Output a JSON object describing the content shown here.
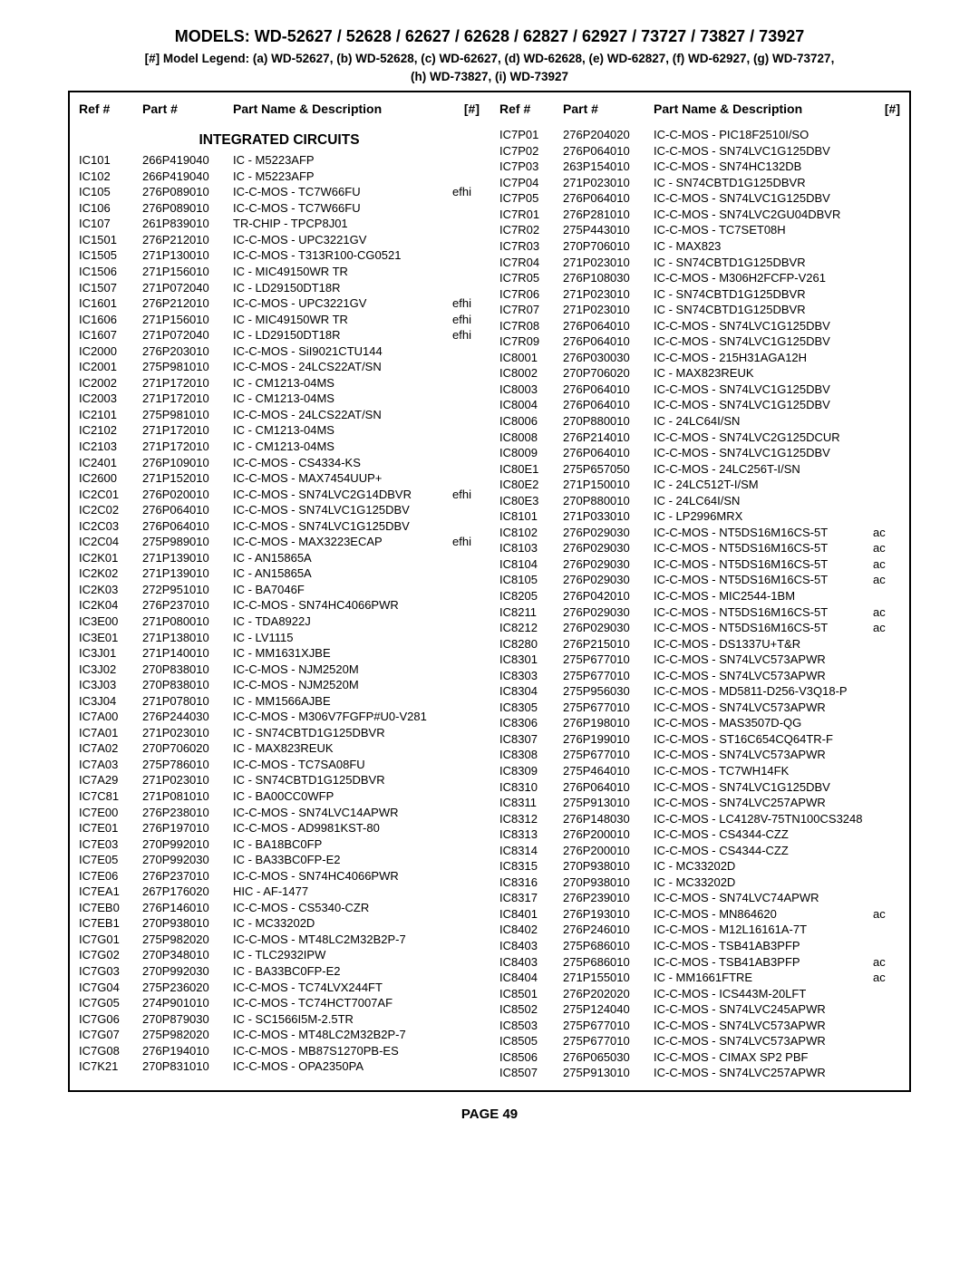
{
  "header": {
    "models_title": "MODELS: WD-52627 / 52628 / 62627 / 62628 / 62827 / 62927 / 73727 / 73827 / 73927",
    "legend_line1": "[#] Model Legend:  (a) WD-52627, (b) WD-52628, (c) WD-62627, (d) WD-62628, (e) WD-62827, (f) WD-62927, (g) WD-73727,",
    "legend_line2": "(h) WD-73827, (i) WD-73927"
  },
  "column_headers": {
    "ref": "Ref #",
    "part": "Part #",
    "desc": "Part Name & Description",
    "hash": "[#]"
  },
  "section_title": "INTEGRATED CIRCUITS",
  "page_label": "PAGE 49",
  "left_rows": [
    {
      "ref": "IC101",
      "part": "266P419040",
      "desc": "IC - M5223AFP",
      "tag": ""
    },
    {
      "ref": "IC102",
      "part": "266P419040",
      "desc": "IC - M5223AFP",
      "tag": ""
    },
    {
      "ref": "IC105",
      "part": "276P089010",
      "desc": "IC-C-MOS -  TC7W66FU",
      "tag": "efhi"
    },
    {
      "ref": "IC106",
      "part": "276P089010",
      "desc": "IC-C-MOS - TC7W66FU",
      "tag": ""
    },
    {
      "ref": "IC107",
      "part": "261P839010",
      "desc": "TR-CHIP -  TPCP8J01",
      "tag": ""
    },
    {
      "ref": "IC1501",
      "part": "276P212010",
      "desc": "IC-C-MOS - UPC3221GV",
      "tag": ""
    },
    {
      "ref": "IC1505",
      "part": "271P130010",
      "desc": "IC-C-MOS - T313R100-CG0521",
      "tag": ""
    },
    {
      "ref": "IC1506",
      "part": "271P156010",
      "desc": "IC -  MIC49150WR TR",
      "tag": ""
    },
    {
      "ref": "IC1507",
      "part": "271P072040",
      "desc": "IC - LD29150DT18R",
      "tag": ""
    },
    {
      "ref": "IC1601",
      "part": "276P212010",
      "desc": "IC-C-MOS -  UPC3221GV",
      "tag": "efhi"
    },
    {
      "ref": "IC1606",
      "part": "271P156010",
      "desc": "IC -  MIC49150WR TR",
      "tag": "efhi"
    },
    {
      "ref": "IC1607",
      "part": "271P072040",
      "desc": "IC - LD29150DT18R",
      "tag": "efhi"
    },
    {
      "ref": "IC2000",
      "part": "276P203010",
      "desc": "IC-C-MOS -  SiI9021CTU144",
      "tag": ""
    },
    {
      "ref": "IC2001",
      "part": "275P981010",
      "desc": "IC-C-MOS - 24LCS22AT/SN",
      "tag": ""
    },
    {
      "ref": "IC2002",
      "part": "271P172010",
      "desc": "IC -  CM1213-04MS",
      "tag": ""
    },
    {
      "ref": "IC2003",
      "part": "271P172010",
      "desc": "IC -  CM1213-04MS",
      "tag": ""
    },
    {
      "ref": "IC2101",
      "part": "275P981010",
      "desc": "IC-C-MOS - 24LCS22AT/SN",
      "tag": ""
    },
    {
      "ref": "IC2102",
      "part": "271P172010",
      "desc": "IC -  CM1213-04MS",
      "tag": ""
    },
    {
      "ref": "IC2103",
      "part": "271P172010",
      "desc": "IC -  CM1213-04MS",
      "tag": ""
    },
    {
      "ref": "IC2401",
      "part": "276P109010",
      "desc": "IC-C-MOS - CS4334-KS",
      "tag": ""
    },
    {
      "ref": "IC2600",
      "part": "271P152010",
      "desc": "IC-C-MOS - MAX7454UUP+",
      "tag": ""
    },
    {
      "ref": "IC2C01",
      "part": "276P020010",
      "desc": "IC-C-MOS - SN74LVC2G14DBVR",
      "tag": "efhi"
    },
    {
      "ref": "IC2C02",
      "part": "276P064010",
      "desc": "IC-C-MOS - SN74LVC1G125DBV",
      "tag": ""
    },
    {
      "ref": "IC2C03",
      "part": "276P064010",
      "desc": "IC-C-MOS - SN74LVC1G125DBV",
      "tag": ""
    },
    {
      "ref": "IC2C04",
      "part": "275P989010",
      "desc": "IC-C-MOS - MAX3223ECAP",
      "tag": "efhi"
    },
    {
      "ref": "IC2K01",
      "part": "271P139010",
      "desc": "IC -  AN15865A",
      "tag": ""
    },
    {
      "ref": "IC2K02",
      "part": "271P139010",
      "desc": "IC -  AN15865A",
      "tag": ""
    },
    {
      "ref": "IC2K03",
      "part": "272P951010",
      "desc": "IC - BA7046F",
      "tag": ""
    },
    {
      "ref": "IC2K04",
      "part": "276P237010",
      "desc": "IC-C-MOS -  SN74HC4066PWR",
      "tag": ""
    },
    {
      "ref": "IC3E00",
      "part": "271P080010",
      "desc": "IC - TDA8922J",
      "tag": ""
    },
    {
      "ref": "IC3E01",
      "part": "271P138010",
      "desc": "IC - LV1115",
      "tag": ""
    },
    {
      "ref": "IC3J01",
      "part": "271P140010",
      "desc": "IC -  MM1631XJBE",
      "tag": ""
    },
    {
      "ref": "IC3J02",
      "part": "270P838010",
      "desc": "IC-C-MOS - NJM2520M",
      "tag": ""
    },
    {
      "ref": "IC3J03",
      "part": "270P838010",
      "desc": "IC-C-MOS - NJM2520M",
      "tag": ""
    },
    {
      "ref": "IC3J04",
      "part": "271P078010",
      "desc": "IC - MM1566AJBE",
      "tag": ""
    },
    {
      "ref": "IC7A00",
      "part": "276P244030",
      "desc": "IC-C-MOS - M306V7FGFP#U0-V281",
      "tag": ""
    },
    {
      "ref": "IC7A01",
      "part": "271P023010",
      "desc": "IC - SN74CBTD1G125DBVR",
      "tag": ""
    },
    {
      "ref": "IC7A02",
      "part": "270P706020",
      "desc": "IC - MAX823REUK",
      "tag": ""
    },
    {
      "ref": "IC7A03",
      "part": "275P786010",
      "desc": "IC-C-MOS - TC7SA08FU",
      "tag": ""
    },
    {
      "ref": "IC7A29",
      "part": "271P023010",
      "desc": "IC - SN74CBTD1G125DBVR",
      "tag": ""
    },
    {
      "ref": "IC7C81",
      "part": "271P081010",
      "desc": "IC - BA00CC0WFP",
      "tag": ""
    },
    {
      "ref": "IC7E00",
      "part": "276P238010",
      "desc": "IC-C-MOS -  SN74LVC14APWR",
      "tag": ""
    },
    {
      "ref": "IC7E01",
      "part": "276P197010",
      "desc": "IC-C-MOS -  AD9981KST-80",
      "tag": ""
    },
    {
      "ref": "IC7E03",
      "part": "270P992010",
      "desc": "IC - BA18BC0FP",
      "tag": ""
    },
    {
      "ref": "IC7E05",
      "part": "270P992030",
      "desc": "IC -  BA33BC0FP-E2",
      "tag": ""
    },
    {
      "ref": "IC7E06",
      "part": "276P237010",
      "desc": "IC-C-MOS - SN74HC4066PWR",
      "tag": ""
    },
    {
      "ref": "IC7EA1",
      "part": "267P176020",
      "desc": "HIC -  AF-1477",
      "tag": ""
    },
    {
      "ref": "IC7EB0",
      "part": "276P146010",
      "desc": "IC-C-MOS - CS5340-CZR",
      "tag": ""
    },
    {
      "ref": "IC7EB1",
      "part": "270P938010",
      "desc": "IC -  MC33202D",
      "tag": ""
    },
    {
      "ref": "IC7G01",
      "part": "275P982020",
      "desc": "IC-C-MOS - MT48LC2M32B2P-7",
      "tag": ""
    },
    {
      "ref": "IC7G02",
      "part": "270P348010",
      "desc": "IC - TLC2932IPW",
      "tag": ""
    },
    {
      "ref": "IC7G03",
      "part": "270P992030",
      "desc": "IC -  BA33BC0FP-E2",
      "tag": ""
    },
    {
      "ref": "IC7G04",
      "part": "275P236020",
      "desc": "IC-C-MOS - TC74LVX244FT",
      "tag": ""
    },
    {
      "ref": "IC7G05",
      "part": "274P901010",
      "desc": "IC-C-MOS - TC74HCT7007AF",
      "tag": ""
    },
    {
      "ref": "IC7G06",
      "part": "270P879030",
      "desc": "IC - SC1566I5M-2.5TR",
      "tag": ""
    },
    {
      "ref": "IC7G07",
      "part": "275P982020",
      "desc": "IC-C-MOS - MT48LC2M32B2P-7",
      "tag": ""
    },
    {
      "ref": "IC7G08",
      "part": "276P194010",
      "desc": "IC-C-MOS - MB87S1270PB-ES",
      "tag": ""
    },
    {
      "ref": "IC7K21",
      "part": "270P831010",
      "desc": "IC-C-MOS - OPA2350PA",
      "tag": ""
    }
  ],
  "right_rows": [
    {
      "ref": "IC7P01",
      "part": "276P204020",
      "desc": "IC-C-MOS -  PIC18F2510I/SO",
      "tag": ""
    },
    {
      "ref": "IC7P02",
      "part": "276P064010",
      "desc": "IC-C-MOS - SN74LVC1G125DBV",
      "tag": ""
    },
    {
      "ref": "IC7P03",
      "part": "263P154010",
      "desc": "IC-C-MOS -  SN74HC132DB",
      "tag": ""
    },
    {
      "ref": "IC7P04",
      "part": "271P023010",
      "desc": "IC - SN74CBTD1G125DBVR",
      "tag": ""
    },
    {
      "ref": "IC7P05",
      "part": "276P064010",
      "desc": "IC-C-MOS - SN74LVC1G125DBV",
      "tag": ""
    },
    {
      "ref": "IC7R01",
      "part": "276P281010",
      "desc": "IC-C-MOS - SN74LVC2GU04DBVR",
      "tag": ""
    },
    {
      "ref": "IC7R02",
      "part": "275P443010",
      "desc": "IC-C-MOS - TC7SET08H",
      "tag": ""
    },
    {
      "ref": "IC7R03",
      "part": "270P706010",
      "desc": "IC - MAX823",
      "tag": ""
    },
    {
      "ref": "IC7R04",
      "part": "271P023010",
      "desc": "IC - SN74CBTD1G125DBVR",
      "tag": ""
    },
    {
      "ref": "IC7R05",
      "part": "276P108030",
      "desc": "IC-C-MOS - M306H2FCFP-V261",
      "tag": ""
    },
    {
      "ref": "IC7R06",
      "part": "271P023010",
      "desc": "IC - SN74CBTD1G125DBVR",
      "tag": ""
    },
    {
      "ref": "IC7R07",
      "part": "271P023010",
      "desc": "IC - SN74CBTD1G125DBVR",
      "tag": ""
    },
    {
      "ref": "IC7R08",
      "part": "276P064010",
      "desc": "IC-C-MOS - SN74LVC1G125DBV",
      "tag": ""
    },
    {
      "ref": "IC7R09",
      "part": "276P064010",
      "desc": "IC-C-MOS - SN74LVC1G125DBV",
      "tag": ""
    },
    {
      "ref": "IC8001",
      "part": "276P030030",
      "desc": "IC-C-MOS - 215H31AGA12H",
      "tag": ""
    },
    {
      "ref": "IC8002",
      "part": "270P706020",
      "desc": "IC - MAX823REUK",
      "tag": ""
    },
    {
      "ref": "IC8003",
      "part": "276P064010",
      "desc": "IC-C-MOS - SN74LVC1G125DBV",
      "tag": ""
    },
    {
      "ref": "IC8004",
      "part": "276P064010",
      "desc": "IC-C-MOS - SN74LVC1G125DBV",
      "tag": ""
    },
    {
      "ref": "IC8006",
      "part": "270P880010",
      "desc": "IC -  24LC64I/SN",
      "tag": ""
    },
    {
      "ref": "IC8008",
      "part": "276P214010",
      "desc": "IC-C-MOS - SN74LVC2G125DCUR",
      "tag": ""
    },
    {
      "ref": "IC8009",
      "part": "276P064010",
      "desc": "IC-C-MOS - SN74LVC1G125DBV",
      "tag": ""
    },
    {
      "ref": "IC80E1",
      "part": "275P657050",
      "desc": "IC-C-MOS - 24LC256T-I/SN",
      "tag": ""
    },
    {
      "ref": "IC80E2",
      "part": "271P150010",
      "desc": "IC -  24LC512T-I/SM",
      "tag": ""
    },
    {
      "ref": "IC80E3",
      "part": "270P880010",
      "desc": "IC -  24LC64I/SN",
      "tag": ""
    },
    {
      "ref": "IC8101",
      "part": "271P033010",
      "desc": "IC - LP2996MRX",
      "tag": ""
    },
    {
      "ref": "IC8102",
      "part": "276P029030",
      "desc": "IC-C-MOS - NT5DS16M16CS-5T",
      "tag": "ac"
    },
    {
      "ref": "IC8103",
      "part": "276P029030",
      "desc": "IC-C-MOS - NT5DS16M16CS-5T",
      "tag": "ac"
    },
    {
      "ref": "IC8104",
      "part": "276P029030",
      "desc": "IC-C-MOS - NT5DS16M16CS-5T",
      "tag": "ac"
    },
    {
      "ref": "IC8105",
      "part": "276P029030",
      "desc": "IC-C-MOS - NT5DS16M16CS-5T",
      "tag": "ac"
    },
    {
      "ref": "IC8205",
      "part": "276P042010",
      "desc": "IC-C-MOS - MIC2544-1BM",
      "tag": ""
    },
    {
      "ref": "IC8211",
      "part": "276P029030",
      "desc": "IC-C-MOS - NT5DS16M16CS-5T",
      "tag": "ac"
    },
    {
      "ref": "IC8212",
      "part": "276P029030",
      "desc": "IC-C-MOS - NT5DS16M16CS-5T",
      "tag": "ac"
    },
    {
      "ref": "IC8280",
      "part": "276P215010",
      "desc": "IC-C-MOS -  DS1337U+T&R",
      "tag": ""
    },
    {
      "ref": "IC8301",
      "part": "275P677010",
      "desc": "IC-C-MOS - SN74LVC573APWR",
      "tag": ""
    },
    {
      "ref": "IC8303",
      "part": "275P677010",
      "desc": "IC-C-MOS - SN74LVC573APWR",
      "tag": ""
    },
    {
      "ref": "IC8304",
      "part": "275P956030",
      "desc": "IC-C-MOS - MD5811-D256-V3Q18-P",
      "tag": ""
    },
    {
      "ref": "IC8305",
      "part": "275P677010",
      "desc": "IC-C-MOS - SN74LVC573APWR",
      "tag": ""
    },
    {
      "ref": "IC8306",
      "part": "276P198010",
      "desc": "IC-C-MOS - MAS3507D-QG",
      "tag": ""
    },
    {
      "ref": "IC8307",
      "part": "276P199010",
      "desc": "IC-C-MOS - ST16C654CQ64TR-F",
      "tag": ""
    },
    {
      "ref": "IC8308",
      "part": "275P677010",
      "desc": "IC-C-MOS - SN74LVC573APWR",
      "tag": ""
    },
    {
      "ref": "IC8309",
      "part": "275P464010",
      "desc": "IC-C-MOS -  TC7WH14FK",
      "tag": ""
    },
    {
      "ref": "IC8310",
      "part": "276P064010",
      "desc": "IC-C-MOS - SN74LVC1G125DBV",
      "tag": ""
    },
    {
      "ref": "IC8311",
      "part": "275P913010",
      "desc": "IC-C-MOS -  SN74LVC257APWR",
      "tag": ""
    },
    {
      "ref": "IC8312",
      "part": "276P148030",
      "desc": "IC-C-MOS - LC4128V-75TN100CS3248",
      "tag": ""
    },
    {
      "ref": "IC8313",
      "part": "276P200010",
      "desc": "IC-C-MOS -  CS4344-CZZ",
      "tag": ""
    },
    {
      "ref": "IC8314",
      "part": "276P200010",
      "desc": "IC-C-MOS - CS4344-CZZ",
      "tag": ""
    },
    {
      "ref": "IC8315",
      "part": "270P938010",
      "desc": "IC -  MC33202D",
      "tag": ""
    },
    {
      "ref": "IC8316",
      "part": "270P938010",
      "desc": "IC -  MC33202D",
      "tag": ""
    },
    {
      "ref": "IC8317",
      "part": "276P239010",
      "desc": "IC-C-MOS - SN74LVC74APWR",
      "tag": ""
    },
    {
      "ref": "IC8401",
      "part": "276P193010",
      "desc": "IC-C-MOS -  MN864620",
      "tag": "ac"
    },
    {
      "ref": "IC8402",
      "part": "276P246010",
      "desc": "IC-C-MOS - M12L16161A-7T",
      "tag": ""
    },
    {
      "ref": "IC8403",
      "part": "275P686010",
      "desc": "IC-C-MOS - TSB41AB3PFP",
      "tag": ""
    },
    {
      "ref": "IC8403",
      "part": "275P686010",
      "desc": "IC-C-MOS - TSB41AB3PFP",
      "tag": "ac"
    },
    {
      "ref": "IC8404",
      "part": "271P155010",
      "desc": "IC -  MM1661FTRE",
      "tag": "ac"
    },
    {
      "ref": "IC8501",
      "part": "276P202020",
      "desc": "IC-C-MOS -  ICS443M-20LFT",
      "tag": ""
    },
    {
      "ref": "IC8502",
      "part": "275P124040",
      "desc": "IC-C-MOS - SN74LVC245APWR",
      "tag": ""
    },
    {
      "ref": "IC8503",
      "part": "275P677010",
      "desc": "IC-C-MOS - SN74LVC573APWR",
      "tag": ""
    },
    {
      "ref": "IC8505",
      "part": "275P677010",
      "desc": "IC-C-MOS - SN74LVC573APWR",
      "tag": ""
    },
    {
      "ref": "IC8506",
      "part": "276P065030",
      "desc": "IC-C-MOS -  CIMAX SP2 PBF",
      "tag": ""
    },
    {
      "ref": "IC8507",
      "part": "275P913010",
      "desc": "IC-C-MOS -  SN74LVC257APWR",
      "tag": ""
    }
  ]
}
